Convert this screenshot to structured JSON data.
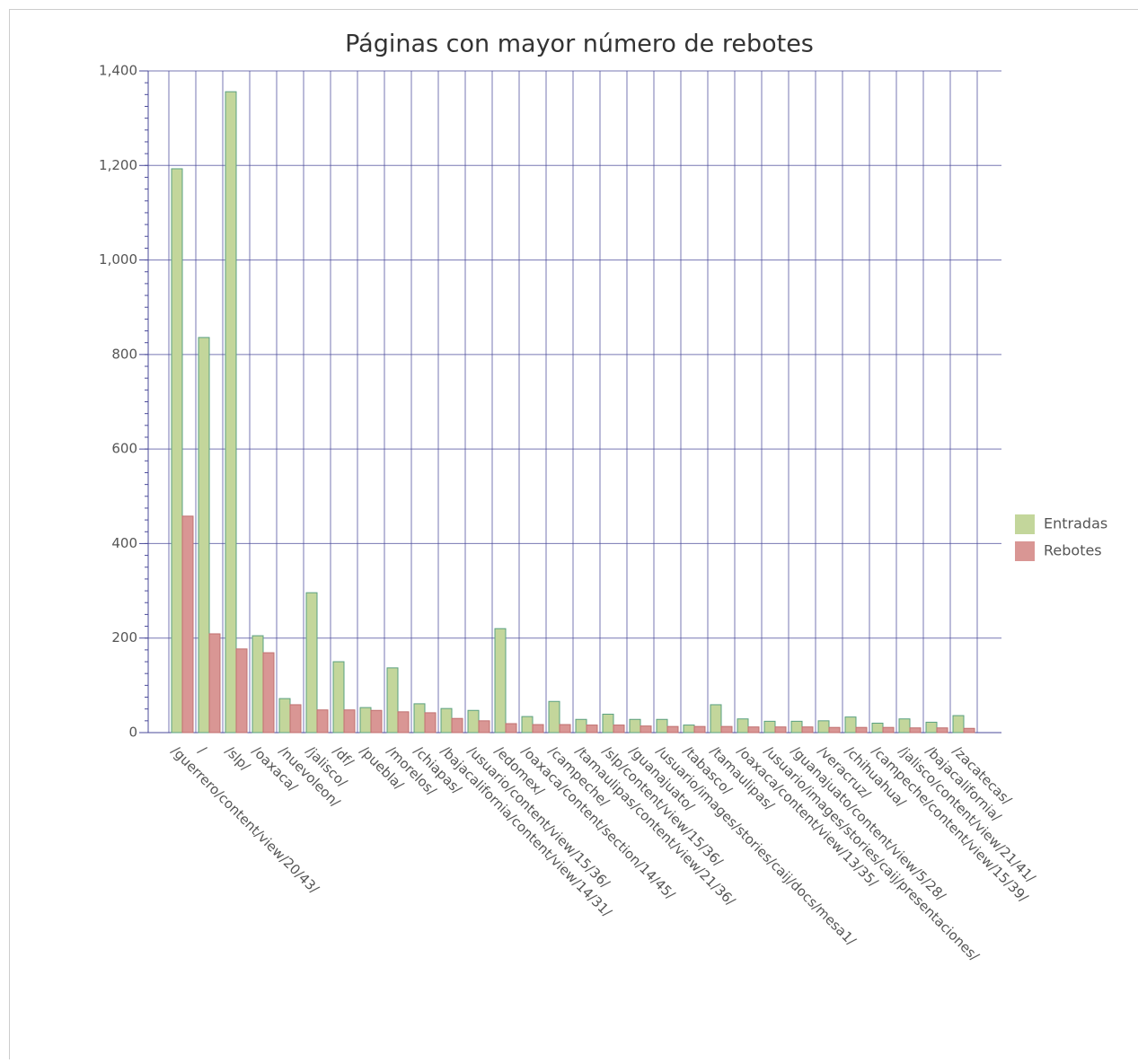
{
  "chart_data": {
    "type": "bar",
    "title": "Páginas con mayor número de rebotes",
    "categories": [
      "/guerrero/content/view/20/43/",
      "/",
      "/slp/",
      "/oaxaca/",
      "/nuevoleon/",
      "/jalisco/",
      "/df/",
      "/puebla/",
      "/morelos/",
      "/chiapas/",
      "/bajacalifornia/content/view/14/31/",
      "/usuario/content/view/15/36/",
      "/edomex/",
      "/oaxaca/content/section/14/45/",
      "/campeche/",
      "/tamaulipas/content/view/21/36/",
      "/slp/content/view/15/36/",
      "/guanajuato/",
      "/usuario/images/stories/caij/docs/mesa1/",
      "/tabasco/",
      "/tamaulipas/",
      "/oaxaca/content/view/13/35/",
      "/usuario/images/stories/caij/presentaciones/",
      "/guanajuato/content/view/5/28/",
      "/veracruz/",
      "/chihuahua/",
      "/campeche/content/view/15/39/",
      "/jalisco/content/view/21/41/",
      "/bajacalifornia/",
      "/zacatecas/"
    ],
    "series": [
      {
        "name": "Entradas",
        "color": "#c3d69b",
        "values": [
          1193,
          836,
          1356,
          205,
          72,
          296,
          150,
          53,
          137,
          61,
          51,
          47,
          220,
          34,
          66,
          28,
          39,
          28,
          28,
          16,
          59,
          29,
          24,
          24,
          25,
          33,
          20,
          29,
          22,
          36
        ]
      },
      {
        "name": "Rebotes",
        "color": "#d99694",
        "values": [
          458,
          209,
          177,
          169,
          59,
          48,
          48,
          47,
          44,
          42,
          30,
          25,
          19,
          17,
          17,
          16,
          16,
          14,
          13,
          13,
          13,
          12,
          12,
          12,
          11,
          11,
          11,
          10,
          10,
          9
        ]
      }
    ],
    "ylim": [
      0,
      1400
    ],
    "yticks": [
      0,
      200,
      400,
      600,
      800,
      {
        "value": 1000,
        "label": "1,000"
      },
      {
        "value": 1200,
        "label": "1,200"
      },
      {
        "value": 1400,
        "label": "1,400"
      }
    ],
    "grid": true,
    "legend": "right"
  }
}
